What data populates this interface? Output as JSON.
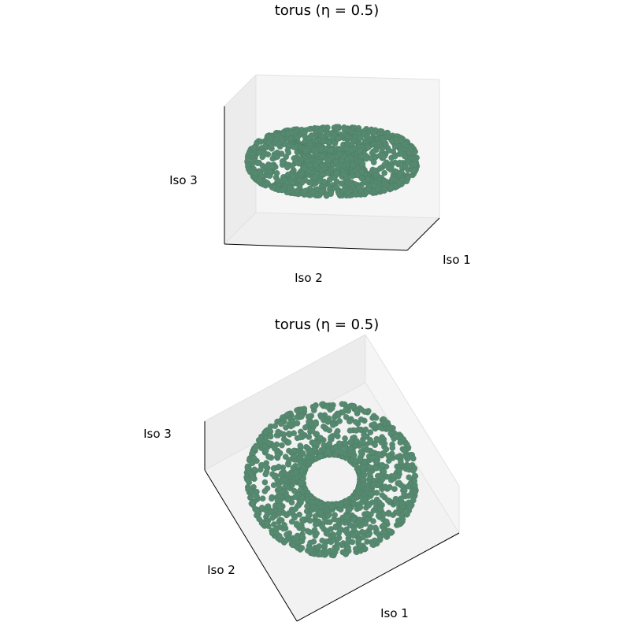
{
  "chart_data": [
    {
      "type": "scatter",
      "projection": "3d",
      "title": "torus (η = 0.5)",
      "xlabel": "Iso 1",
      "ylabel": "Iso 2",
      "zlabel": "Iso 3",
      "marker_color": "#568a70",
      "view": "low elevation, side-on"
    },
    {
      "type": "scatter",
      "projection": "3d",
      "title": "torus (η = 0.5)",
      "xlabel": "Iso 1",
      "ylabel": "Iso 2",
      "zlabel": "Iso 3",
      "marker_color": "#568a70",
      "view": "high elevation, top-down"
    }
  ]
}
